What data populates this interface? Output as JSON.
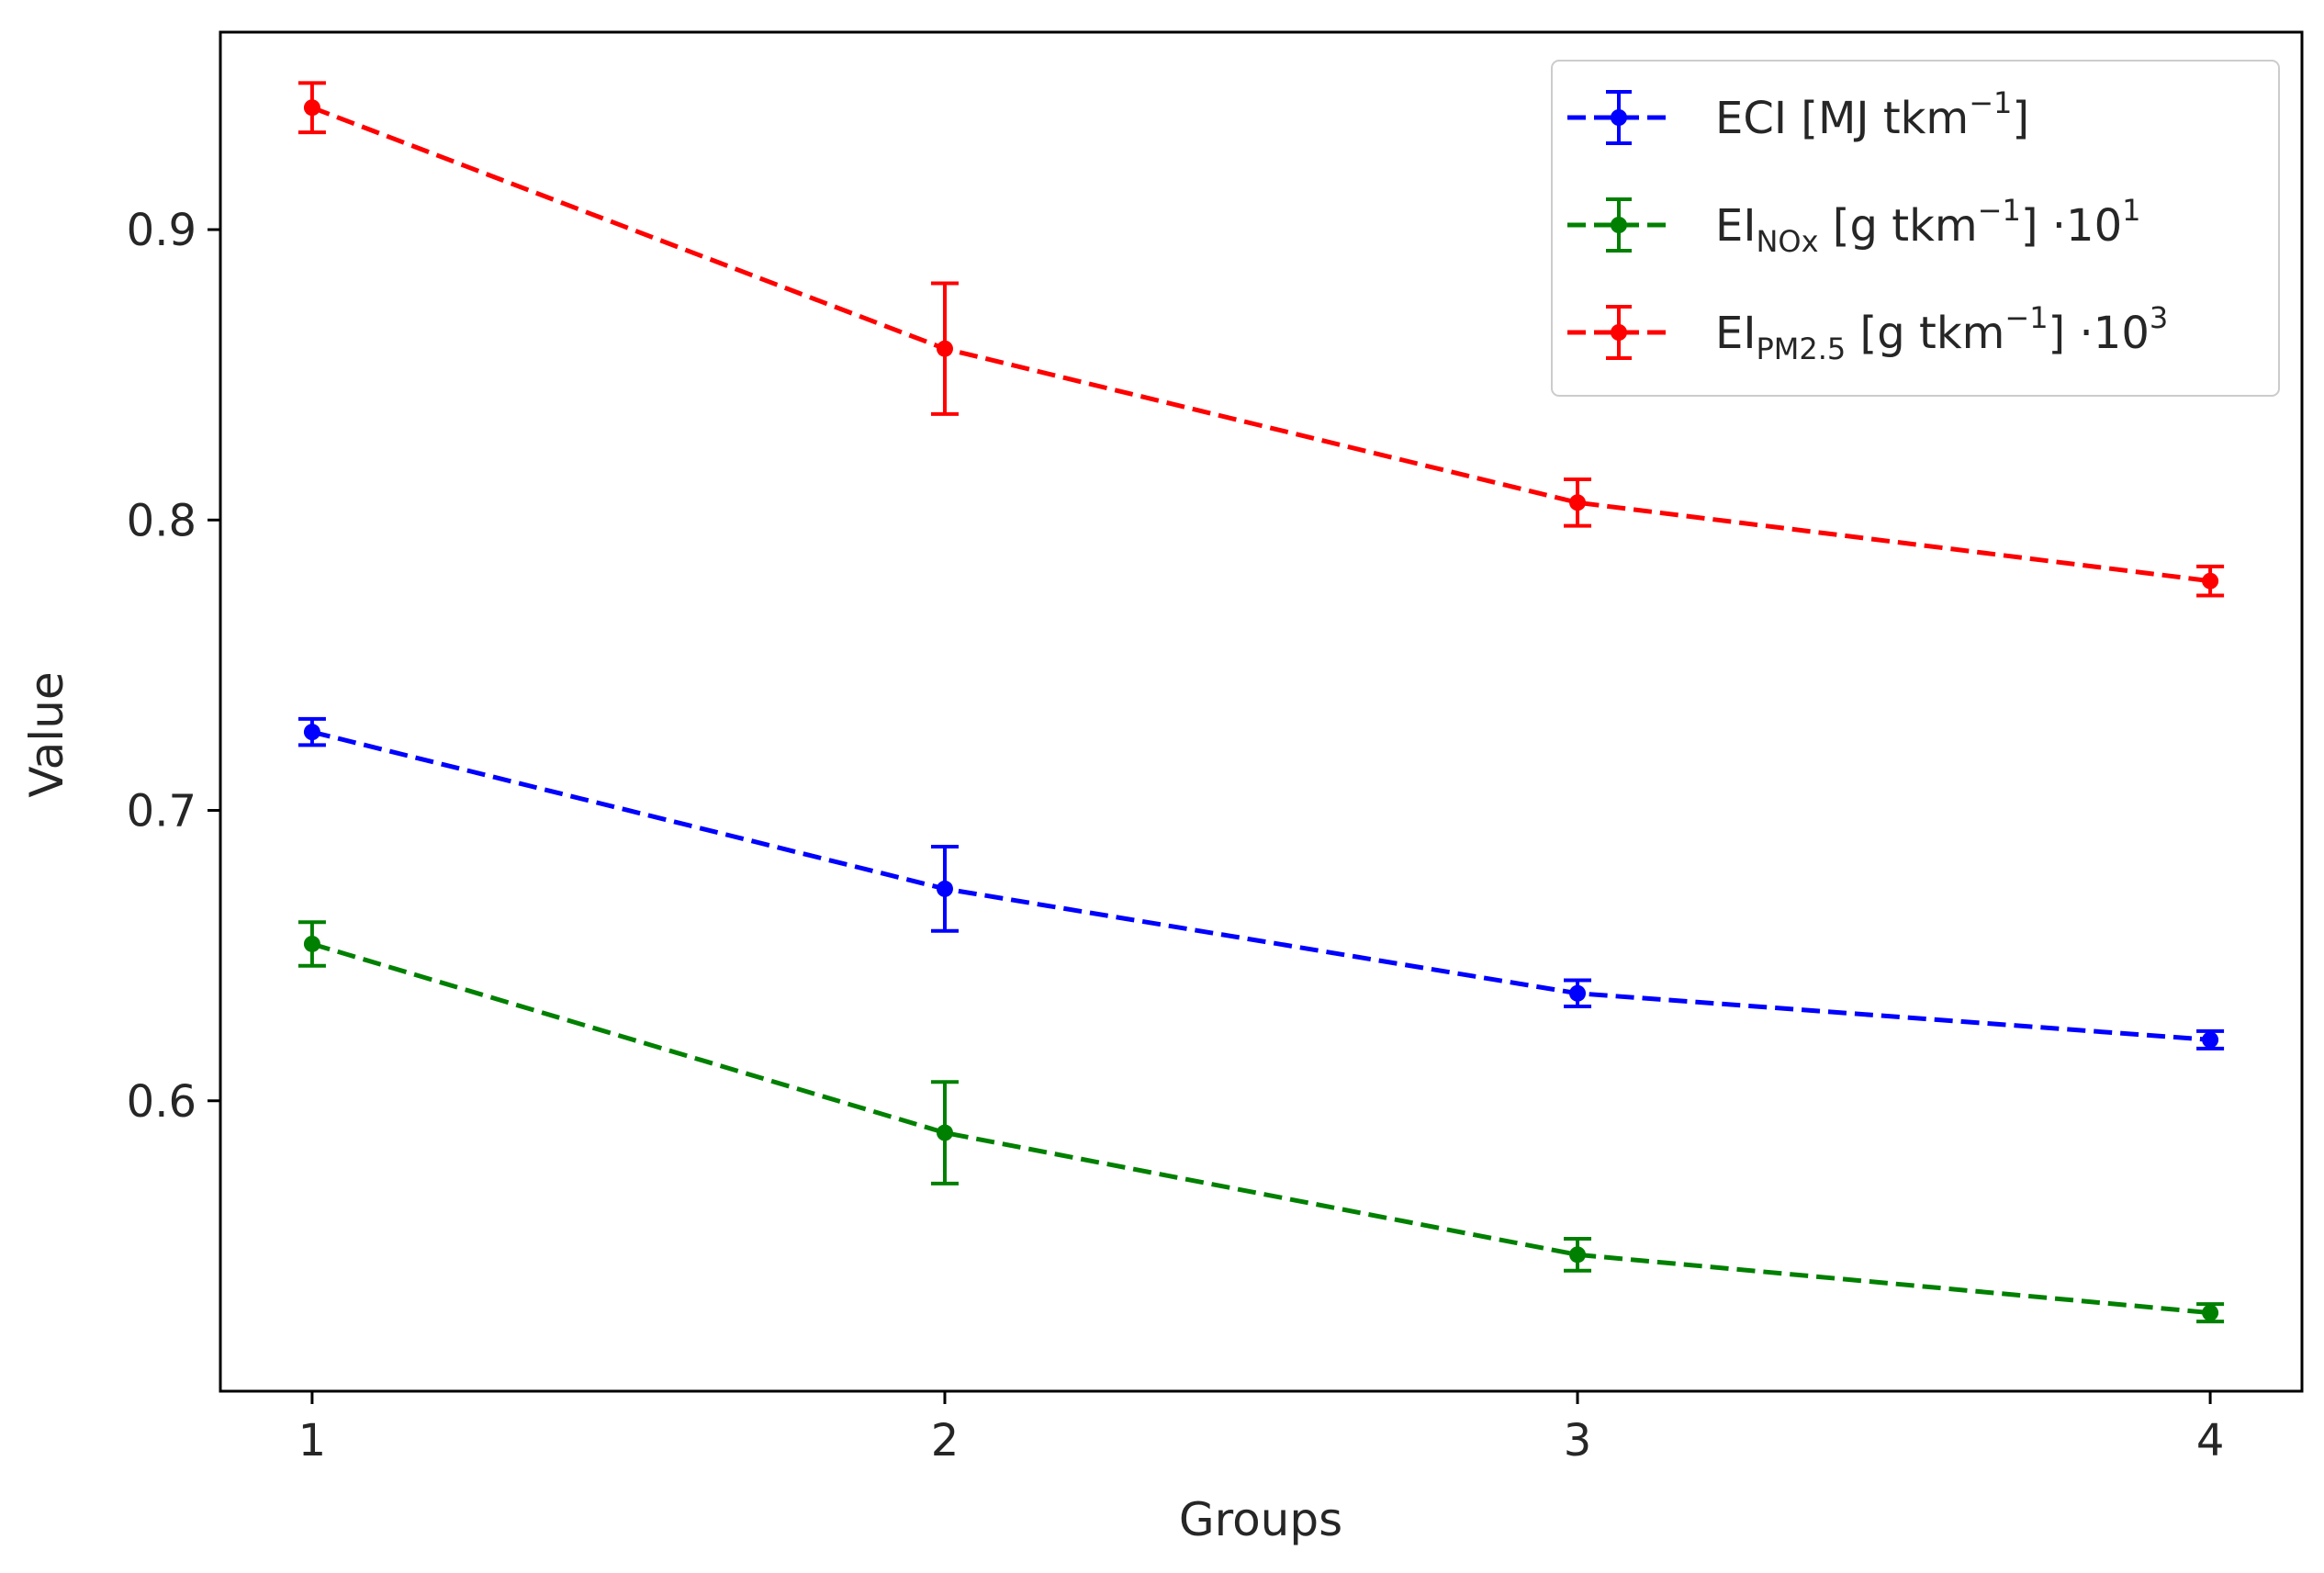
{
  "chart_data": {
    "type": "line",
    "xlabel": "Groups",
    "ylabel": "Value",
    "x": [
      1,
      2,
      3,
      4
    ],
    "xticks": [
      "1",
      "2",
      "3",
      "4"
    ],
    "yticks": [
      0.6,
      0.7,
      0.8,
      0.9
    ],
    "ytick_labels": [
      "0.6",
      "0.7",
      "0.8",
      "0.9"
    ],
    "xlim": [
      0.855,
      4.145
    ],
    "ylim": [
      0.5,
      0.968
    ],
    "grid": false,
    "legend_position": "top-right",
    "series": [
      {
        "name": "ECI [MJ tkm−1]",
        "label_parts": {
          "main": "ECI [MJ tkm",
          "sup": "−1",
          "tail": "]"
        },
        "color": "#0000ff",
        "linestyle": "dashed",
        "values": [
          0.727,
          0.673,
          0.637,
          0.621
        ],
        "errors": [
          0.0045,
          0.0145,
          0.0045,
          0.003
        ]
      },
      {
        "name": "EI NOx [g tkm−1] ·10^1",
        "label_parts": {
          "main": "EI",
          "sub": "NOx",
          "mid": " [g tkm",
          "sup": "−1",
          "tail": "] ·10",
          "sup2": "1"
        },
        "color": "#008000",
        "linestyle": "dashed",
        "values": [
          0.654,
          0.589,
          0.547,
          0.527
        ],
        "errors": [
          0.0075,
          0.0175,
          0.0055,
          0.003
        ]
      },
      {
        "name": "EI PM2.5 [g tkm−1] ·10^3",
        "label_parts": {
          "main": "EI",
          "sub": "PM2.5",
          "mid": " [g tkm",
          "sup": "−1",
          "tail": "] ·10",
          "sup2": "3"
        },
        "color": "#ff0000",
        "linestyle": "dashed",
        "values": [
          0.942,
          0.859,
          0.806,
          0.779
        ],
        "errors": [
          0.0085,
          0.0225,
          0.008,
          0.005
        ]
      }
    ]
  }
}
